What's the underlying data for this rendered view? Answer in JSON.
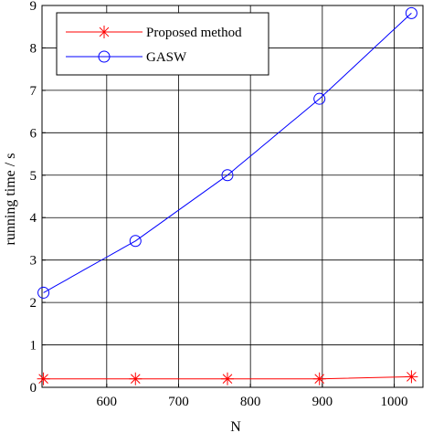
{
  "chart_data": {
    "type": "line",
    "xlabel": "N",
    "ylabel": "running time / s",
    "xlim": [
      510,
      1040
    ],
    "ylim": [
      0,
      9
    ],
    "xticks": [
      600,
      700,
      800,
      900,
      1000
    ],
    "yticks": [
      0,
      1,
      2,
      3,
      4,
      5,
      6,
      7,
      8,
      9
    ],
    "grid": true,
    "legend_position": "top-left",
    "x": [
      512,
      640,
      768,
      896,
      1024
    ],
    "series": [
      {
        "name": "Proposed method",
        "color": "#ff0000",
        "marker": "star",
        "values": [
          0.2,
          0.2,
          0.2,
          0.2,
          0.25
        ]
      },
      {
        "name": "GASW",
        "color": "#0000ff",
        "marker": "circle",
        "values": [
          2.23,
          3.45,
          5.0,
          6.8,
          8.82
        ]
      }
    ]
  }
}
